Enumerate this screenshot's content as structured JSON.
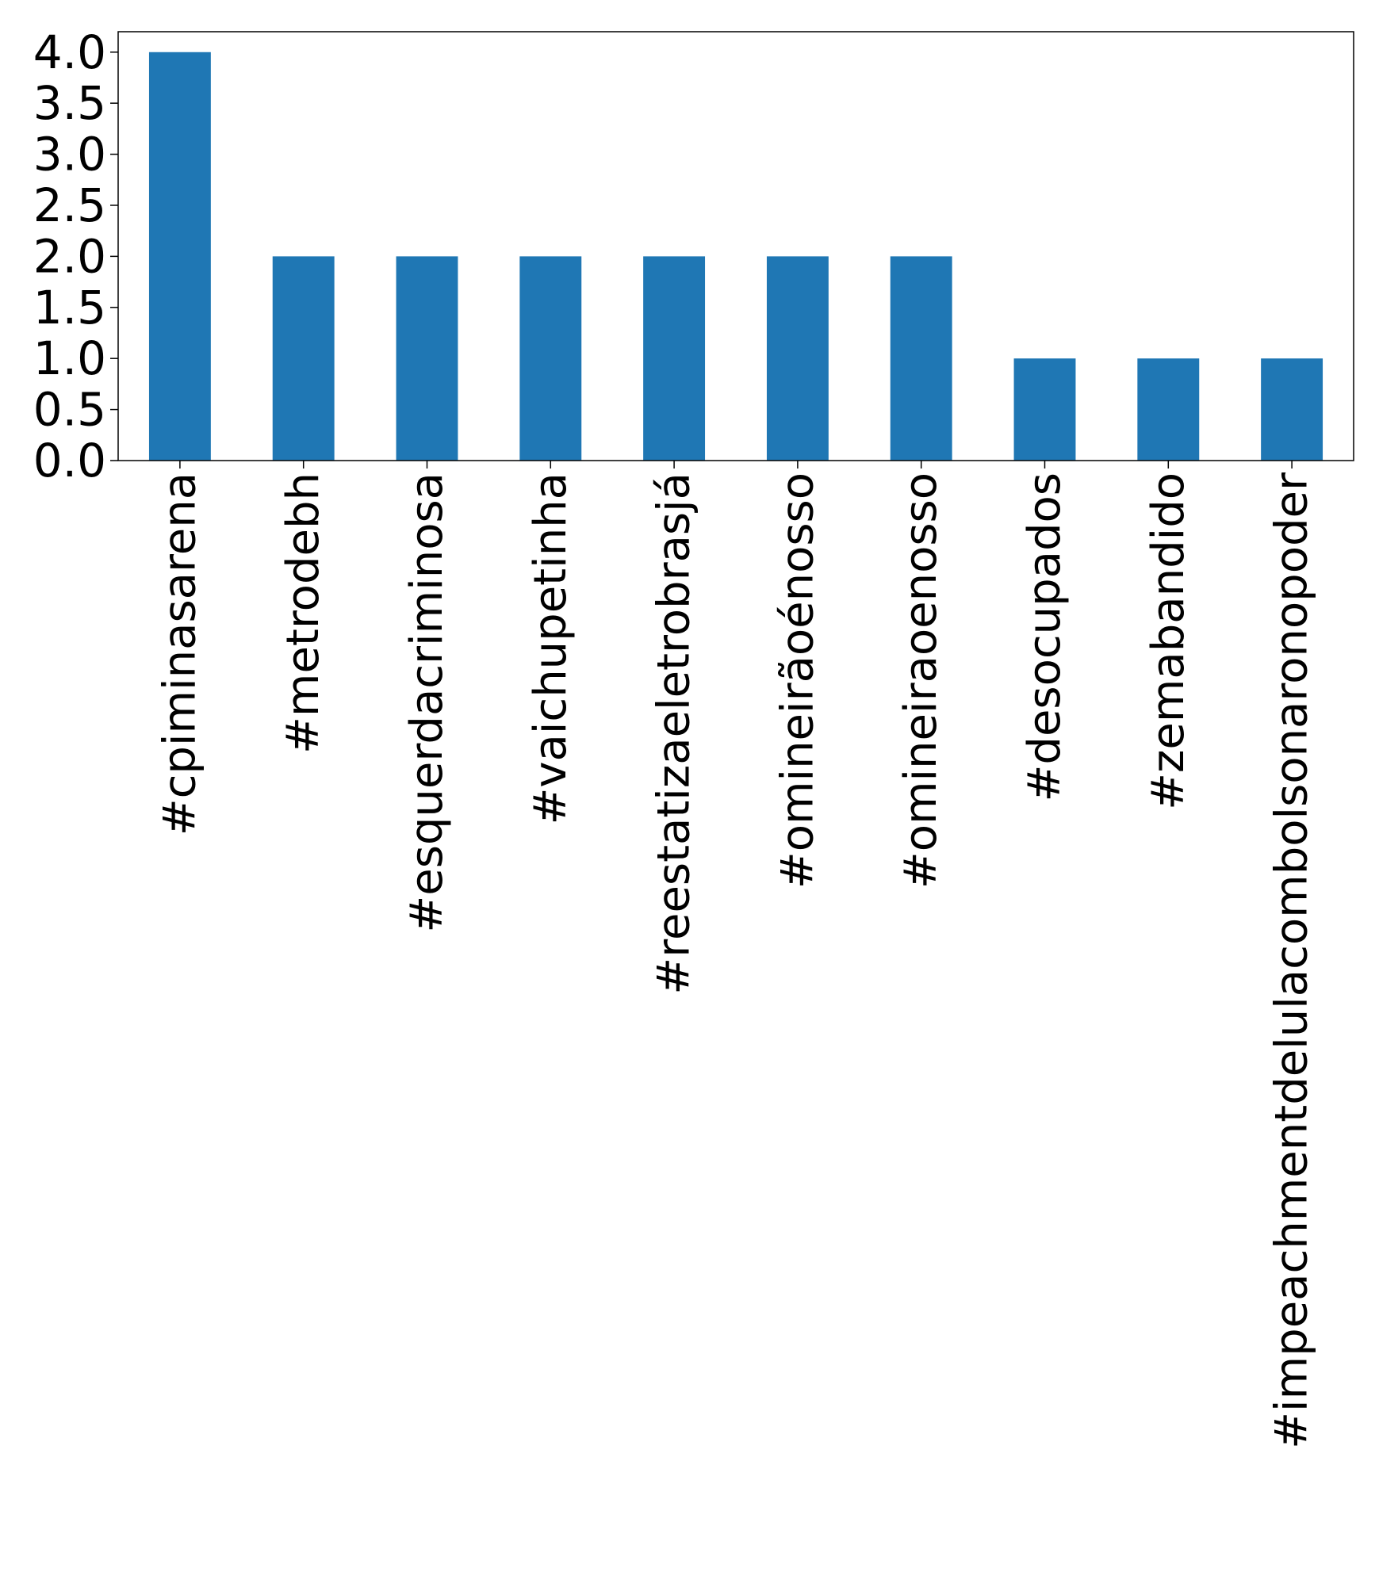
{
  "chart_data": {
    "type": "bar",
    "title": "",
    "xlabel": "",
    "ylabel": "",
    "categories": [
      "#cpiminasarena",
      "#metrodebh",
      "#esquerdacriminosa",
      "#vaichupetinha",
      "#reestatizaeletrobrasjá",
      "#omineirãoénosso",
      "#omineiraoenosso",
      "#desocupados",
      "#zemabandido",
      "#impeachmentdelulacombolsonaronopoder"
    ],
    "values": [
      4,
      2,
      2,
      2,
      2,
      2,
      2,
      1,
      1,
      1
    ],
    "ylim": [
      0,
      4.2
    ],
    "yticks": [
      "0.0",
      "0.5",
      "1.0",
      "1.5",
      "2.0",
      "2.5",
      "3.0",
      "3.5",
      "4.0"
    ],
    "bar_color": "#1f77b4",
    "grid": false,
    "legend": "none"
  }
}
